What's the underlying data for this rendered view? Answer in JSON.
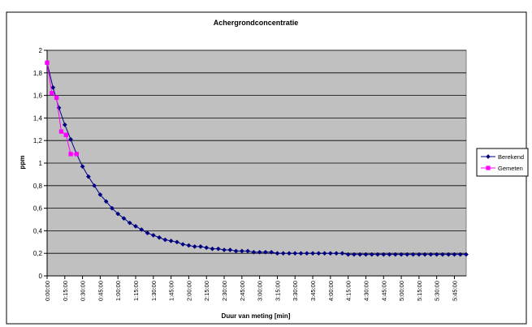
{
  "chart_data": {
    "type": "line",
    "title": "Achergrondconcentratie",
    "xlabel": "Duur van meting [min]",
    "ylabel": "ppm",
    "ylim": [
      0,
      2
    ],
    "y_ticks": [
      "0",
      "0,2",
      "0,4",
      "0,6",
      "0,8",
      "1",
      "1,2",
      "1,4",
      "1,6",
      "1,8",
      "2"
    ],
    "x_ticks": [
      "0:00:00",
      "0:15:00",
      "0:30:00",
      "0:45:00",
      "1:00:00",
      "1:15:00",
      "1:30:00",
      "1:45:00",
      "2:00:00",
      "2:15:00",
      "2:30:00",
      "2:45:00",
      "3:00:00",
      "3:15:00",
      "3:30:00",
      "3:45:00",
      "4:00:00",
      "4:15:00",
      "4:30:00",
      "4:45:00",
      "5:00:00",
      "5:15:00",
      "5:30:00",
      "5:45:00"
    ],
    "x_unit_minutes_range": [
      0,
      355
    ],
    "grid": true,
    "plot_background": "#c0c0c0",
    "legend_position": "right",
    "series": [
      {
        "name": "Berekend",
        "color": "#000080",
        "marker": "diamond",
        "x": [
          0,
          5,
          10,
          15,
          20,
          25,
          30,
          35,
          40,
          45,
          50,
          55,
          60,
          65,
          70,
          75,
          80,
          85,
          90,
          95,
          100,
          105,
          110,
          115,
          120,
          125,
          130,
          135,
          140,
          145,
          150,
          155,
          160,
          165,
          170,
          175,
          180,
          185,
          190,
          195,
          200,
          205,
          210,
          215,
          220,
          225,
          230,
          235,
          240,
          245,
          250,
          255,
          260,
          265,
          270,
          275,
          280,
          285,
          290,
          295,
          300,
          305,
          310,
          315,
          320,
          325,
          330,
          335,
          340,
          345,
          350,
          355
        ],
        "y": [
          1.89,
          1.67,
          1.49,
          1.34,
          1.21,
          1.08,
          0.97,
          0.88,
          0.8,
          0.72,
          0.66,
          0.6,
          0.55,
          0.51,
          0.47,
          0.44,
          0.41,
          0.38,
          0.36,
          0.34,
          0.32,
          0.31,
          0.3,
          0.28,
          0.27,
          0.26,
          0.26,
          0.25,
          0.24,
          0.24,
          0.23,
          0.23,
          0.22,
          0.22,
          0.22,
          0.21,
          0.21,
          0.21,
          0.21,
          0.2,
          0.2,
          0.2,
          0.2,
          0.2,
          0.2,
          0.2,
          0.2,
          0.2,
          0.2,
          0.2,
          0.2,
          0.19,
          0.19,
          0.19,
          0.19,
          0.19,
          0.19,
          0.19,
          0.19,
          0.19,
          0.19,
          0.19,
          0.19,
          0.19,
          0.19,
          0.19,
          0.19,
          0.19,
          0.19,
          0.19,
          0.19,
          0.19
        ]
      },
      {
        "name": "Gemeten",
        "color": "#ff00ff",
        "marker": "square",
        "x": [
          0,
          4,
          8,
          12,
          16,
          20,
          25
        ],
        "y": [
          1.89,
          1.62,
          1.58,
          1.28,
          1.25,
          1.08,
          1.08
        ]
      }
    ]
  }
}
